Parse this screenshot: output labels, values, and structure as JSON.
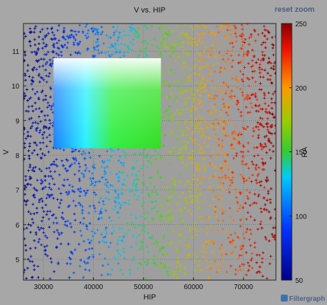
{
  "chart_data": {
    "type": "scatter",
    "title": "V vs. HIP",
    "xlabel": "HIP",
    "ylabel": "V",
    "xlim": [
      26000,
      76500
    ],
    "ylim": [
      4.4,
      11.8
    ],
    "xticks": [
      30000,
      40000,
      50000,
      60000,
      70000
    ],
    "yticks": [
      5,
      6,
      7,
      8,
      9,
      10,
      11
    ],
    "grid": true,
    "marker": "+",
    "color_by": "RA",
    "colorbar": {
      "label": "RA",
      "range": [
        50,
        250
      ],
      "ticks": [
        50,
        100,
        150,
        200,
        250
      ]
    },
    "highlight_region": {
      "x": [
        32000,
        53500
      ],
      "y": [
        8.2,
        10.8
      ]
    }
  },
  "ui": {
    "reset_zoom": "reset zoom",
    "brand": "Filtergraph"
  }
}
